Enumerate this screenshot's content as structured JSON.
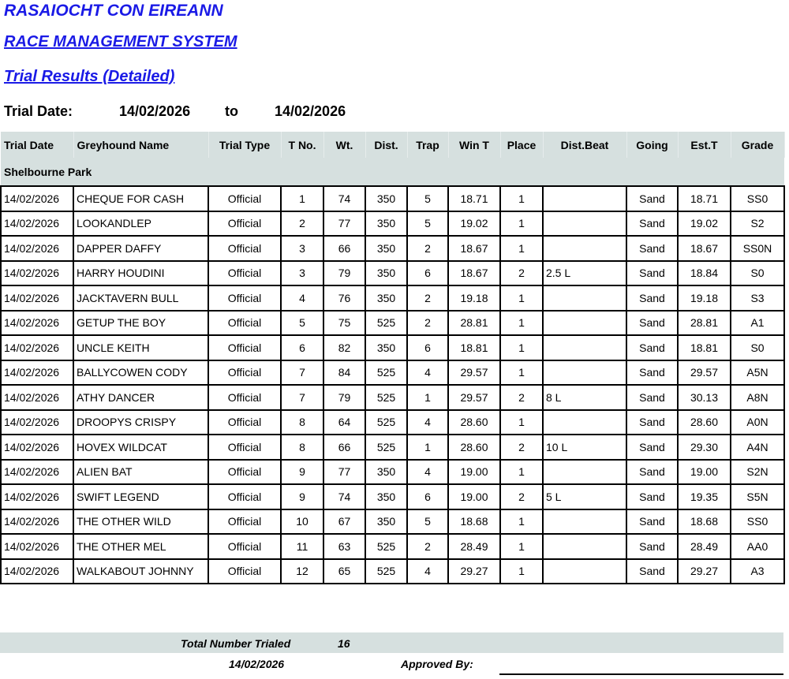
{
  "header": {
    "org": "RASAIOCHT CON EIREANN",
    "system": "RACE MANAGEMENT SYSTEM",
    "report": "Trial Results (Detailed)",
    "date_label": "Trial Date:",
    "date_from": "14/02/2026",
    "to_label": "to",
    "date_to": "14/02/2026"
  },
  "columns": [
    "Trial Date",
    "Greyhound Name",
    "Trial Type",
    "T No.",
    "Wt.",
    "Dist.",
    "Trap",
    "Win T",
    "Place",
    "Dist.Beat",
    "Going",
    "Est.T",
    "Grade"
  ],
  "section": "Shelbourne Park",
  "rows": [
    [
      "14/02/2026",
      "CHEQUE FOR CASH",
      "Official",
      "1",
      "74",
      "350",
      "5",
      "18.71",
      "1",
      "",
      "Sand",
      "18.71",
      "SS0"
    ],
    [
      "14/02/2026",
      "LOOKANDLEP",
      "Official",
      "2",
      "77",
      "350",
      "5",
      "19.02",
      "1",
      "",
      "Sand",
      "19.02",
      "S2"
    ],
    [
      "14/02/2026",
      "DAPPER DAFFY",
      "Official",
      "3",
      "66",
      "350",
      "2",
      "18.67",
      "1",
      "",
      "Sand",
      "18.67",
      "SS0N"
    ],
    [
      "14/02/2026",
      "HARRY HOUDINI",
      "Official",
      "3",
      "79",
      "350",
      "6",
      "18.67",
      "2",
      "2.5 L",
      "Sand",
      "18.84",
      "S0"
    ],
    [
      "14/02/2026",
      "JACKTAVERN BULL",
      "Official",
      "4",
      "76",
      "350",
      "2",
      "19.18",
      "1",
      "",
      "Sand",
      "19.18",
      "S3"
    ],
    [
      "14/02/2026",
      "GETUP THE BOY",
      "Official",
      "5",
      "75",
      "525",
      "2",
      "28.81",
      "1",
      "",
      "Sand",
      "28.81",
      "A1"
    ],
    [
      "14/02/2026",
      "UNCLE KEITH",
      "Official",
      "6",
      "82",
      "350",
      "6",
      "18.81",
      "1",
      "",
      "Sand",
      "18.81",
      "S0"
    ],
    [
      "14/02/2026",
      "BALLYCOWEN CODY",
      "Official",
      "7",
      "84",
      "525",
      "4",
      "29.57",
      "1",
      "",
      "Sand",
      "29.57",
      "A5N"
    ],
    [
      "14/02/2026",
      "ATHY DANCER",
      "Official",
      "7",
      "79",
      "525",
      "1",
      "29.57",
      "2",
      "8 L",
      "Sand",
      "30.13",
      "A8N"
    ],
    [
      "14/02/2026",
      "DROOPYS CRISPY",
      "Official",
      "8",
      "64",
      "525",
      "4",
      "28.60",
      "1",
      "",
      "Sand",
      "28.60",
      "A0N"
    ],
    [
      "14/02/2026",
      "HOVEX WILDCAT",
      "Official",
      "8",
      "66",
      "525",
      "1",
      "28.60",
      "2",
      "10 L",
      "Sand",
      "29.30",
      "A4N"
    ],
    [
      "14/02/2026",
      "ALIEN BAT",
      "Official",
      "9",
      "77",
      "350",
      "4",
      "19.00",
      "1",
      "",
      "Sand",
      "19.00",
      "S2N"
    ],
    [
      "14/02/2026",
      "SWIFT LEGEND",
      "Official",
      "9",
      "74",
      "350",
      "6",
      "19.00",
      "2",
      "5 L",
      "Sand",
      "19.35",
      "S5N"
    ],
    [
      "14/02/2026",
      "THE OTHER WILD",
      "Official",
      "10",
      "67",
      "350",
      "5",
      "18.68",
      "1",
      "",
      "Sand",
      "18.68",
      "SS0"
    ],
    [
      "14/02/2026",
      "THE OTHER MEL",
      "Official",
      "11",
      "63",
      "525",
      "2",
      "28.49",
      "1",
      "",
      "Sand",
      "28.49",
      "AA0"
    ],
    [
      "14/02/2026",
      "WALKABOUT JOHNNY",
      "Official",
      "12",
      "65",
      "525",
      "4",
      "29.27",
      "1",
      "",
      "Sand",
      "29.27",
      "A3"
    ]
  ],
  "footer": {
    "total_label": "Total Number Trialed",
    "total": "16",
    "date": "14/02/2026",
    "approved_label": "Approved By:"
  }
}
